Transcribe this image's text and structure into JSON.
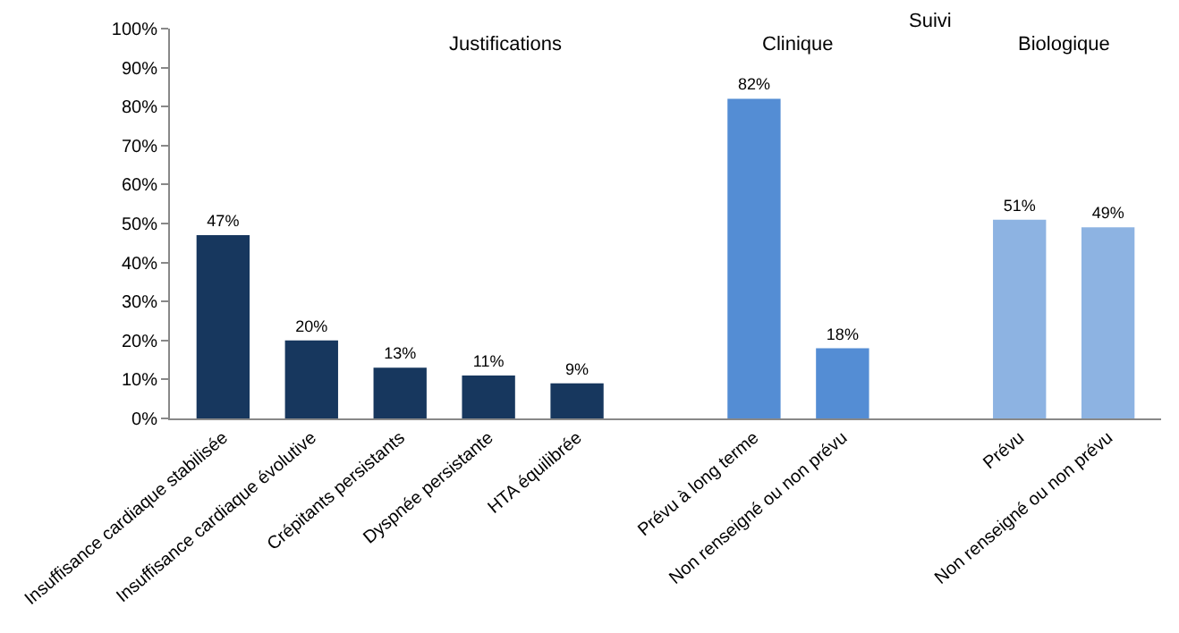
{
  "chart_data": {
    "type": "bar",
    "categories": [
      "Insuffisance cardiaque stabilisée",
      "Insuffisance cardiaque évolutive",
      "Crépitants persistants",
      "Dyspnée persistante",
      "HTA équilibrée",
      null,
      "Prévu à long terme",
      "Non renseigné ou non prévu",
      null,
      "Prévu",
      "Non renseigné ou non prévu"
    ],
    "values": [
      47,
      20,
      13,
      11,
      9,
      null,
      82,
      18,
      null,
      51,
      49
    ],
    "colors": [
      "#17375e",
      "#17375e",
      "#17375e",
      "#17375e",
      "#17375e",
      null,
      "#548dd4",
      "#548dd4",
      null,
      "#8db3e2",
      "#8db3e2"
    ],
    "value_labels": [
      "47%",
      "20%",
      "13%",
      "11%",
      "9%",
      null,
      "82%",
      "18%",
      null,
      "51%",
      "49%"
    ],
    "ylim": [
      0,
      100
    ],
    "yticks": [
      {
        "value": 0,
        "label": "0%"
      },
      {
        "value": 10,
        "label": "10%"
      },
      {
        "value": 20,
        "label": "20%"
      },
      {
        "value": 30,
        "label": "30%"
      },
      {
        "value": 40,
        "label": "40%"
      },
      {
        "value": 50,
        "label": "50%"
      },
      {
        "value": 60,
        "label": "60%"
      },
      {
        "value": 70,
        "label": "70%"
      },
      {
        "value": 80,
        "label": "80%"
      },
      {
        "value": 90,
        "label": "90%"
      },
      {
        "value": 100,
        "label": "100%"
      }
    ],
    "annotations": [
      "Justifications",
      "Suivi",
      "Clinique",
      "Biologique"
    ],
    "legend": false
  }
}
